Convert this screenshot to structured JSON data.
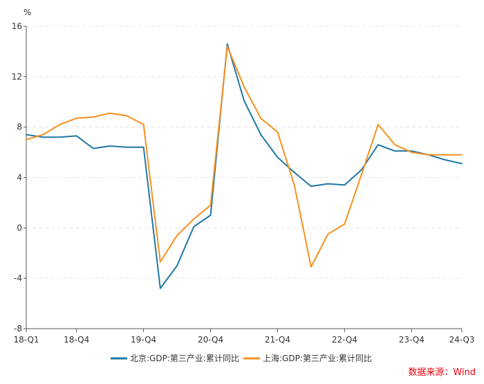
{
  "chart_data": {
    "type": "line",
    "yunit": "%",
    "ylim": [
      -8,
      16
    ],
    "yticks": [
      -8,
      -4,
      0,
      4,
      8,
      12,
      16
    ],
    "grid": true,
    "legend_position": "bottom",
    "x_tick_labels": [
      {
        "index": 0,
        "label": "18-Q1"
      },
      {
        "index": 3,
        "label": "18-Q4"
      },
      {
        "index": 7,
        "label": "19-Q4"
      },
      {
        "index": 11,
        "label": "20-Q4"
      },
      {
        "index": 15,
        "label": "21-Q4"
      },
      {
        "index": 19,
        "label": "22-Q4"
      },
      {
        "index": 23,
        "label": "23-Q4"
      },
      {
        "index": 26,
        "label": "24-Q3"
      }
    ],
    "x": [
      "18-Q1",
      "18-Q2",
      "18-Q3",
      "18-Q4",
      "19-Q1",
      "19-Q2",
      "19-Q3",
      "19-Q4",
      "20-Q1",
      "20-Q2",
      "20-Q3",
      "20-Q4",
      "21-Q1",
      "21-Q2",
      "21-Q3",
      "21-Q4",
      "22-Q1",
      "22-Q2",
      "22-Q3",
      "22-Q4",
      "23-Q1",
      "23-Q2",
      "23-Q3",
      "23-Q4",
      "24-Q1",
      "24-Q2",
      "24-Q3"
    ],
    "series": [
      {
        "name": "北京:GDP:第三产业:累计同比",
        "color": "#1f77a4",
        "values": [
          7.4,
          7.2,
          7.2,
          7.3,
          6.3,
          6.5,
          6.4,
          6.4,
          -4.8,
          -3.0,
          0.1,
          1.0,
          14.6,
          10.1,
          7.4,
          5.6,
          4.4,
          3.3,
          3.5,
          3.4,
          4.6,
          6.6,
          6.1,
          6.1,
          5.8,
          5.4,
          5.1
        ]
      },
      {
        "name": "上海:GDP:第三产业:累计同比",
        "color": "#f5901e",
        "values": [
          7.0,
          7.4,
          8.2,
          8.7,
          8.8,
          9.1,
          8.9,
          8.2,
          -2.7,
          -0.6,
          0.7,
          1.8,
          14.4,
          11.2,
          8.7,
          7.6,
          3.4,
          -3.1,
          -0.5,
          0.3,
          4.2,
          8.2,
          6.6,
          6.0,
          5.8,
          5.8,
          5.8
        ]
      }
    ]
  },
  "source": "数据来源：Wind"
}
